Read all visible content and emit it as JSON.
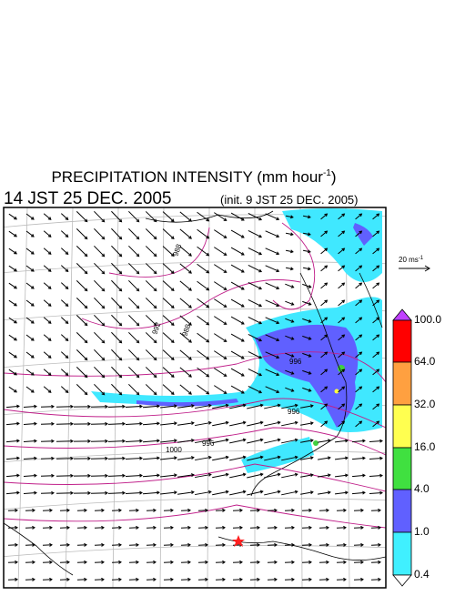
{
  "header": {
    "title": "PRECIPITATION INTENSITY (mm hour",
    "title_sup": "-1",
    "title_end": ")",
    "time": "14 JST 25 DEC. 2005",
    "init": "(init. 9 JST 25 DEC. 2005)"
  },
  "legend": {
    "scale_label": "20 ms",
    "scale_sup": "-1",
    "levels": [
      "100.0",
      "64.0",
      "32.0",
      "16.0",
      "4.0",
      "1.0",
      "0.4"
    ]
  },
  "map": {
    "contour_labels": [
      "988",
      "992",
      "988",
      "996",
      "996",
      "1000",
      "996"
    ]
  }
}
